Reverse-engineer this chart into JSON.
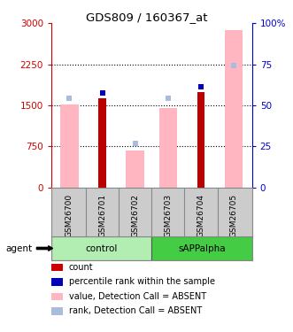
{
  "title": "GDS809 / 160367_at",
  "samples": [
    "GSM26700",
    "GSM26701",
    "GSM26702",
    "GSM26703",
    "GSM26704",
    "GSM26705"
  ],
  "red_bars": [
    0,
    1630,
    0,
    0,
    1750,
    0
  ],
  "pink_bars": [
    1510,
    0,
    670,
    1450,
    0,
    2870
  ],
  "blue_squares_right": [
    0,
    57.5,
    0,
    0,
    61.5,
    0
  ],
  "light_blue_squares_right": [
    54.5,
    0,
    27.0,
    54.5,
    0,
    74.5
  ],
  "ylim_left": [
    0,
    3000
  ],
  "ylim_right": [
    0,
    100
  ],
  "yticks_left": [
    0,
    750,
    1500,
    2250,
    3000
  ],
  "yticks_right": [
    0,
    25,
    50,
    75,
    100
  ],
  "ytick_labels_left": [
    "0",
    "750",
    "1500",
    "2250",
    "3000"
  ],
  "ytick_labels_right": [
    "0",
    "25",
    "50",
    "75",
    "100%"
  ],
  "left_axis_color": "#CC0000",
  "right_axis_color": "#0000CC",
  "bg_color": "#FFFFFF",
  "control_color": "#B2EEB2",
  "sapp_color": "#44CC44",
  "legend_items": [
    {
      "label": "count",
      "color": "#CC0000"
    },
    {
      "label": "percentile rank within the sample",
      "color": "#0000BB"
    },
    {
      "label": "value, Detection Call = ABSENT",
      "color": "#FFB6C1"
    },
    {
      "label": "rank, Detection Call = ABSENT",
      "color": "#AABBDD"
    }
  ]
}
